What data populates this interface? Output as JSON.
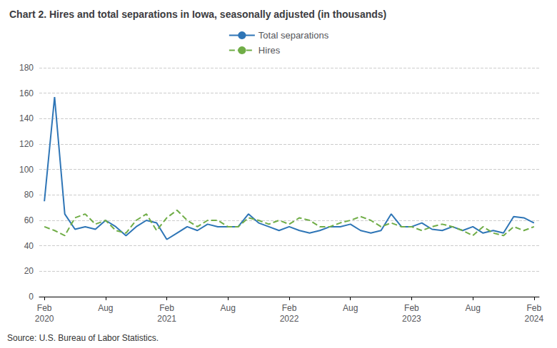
{
  "chart_data": {
    "type": "line",
    "title": "Chart 2. Hires and total separations in Iowa, seasonally adjusted (in thousands)",
    "annotations": [
      "Source: U.S. Bureau of Labor Statistics."
    ],
    "categories": [
      "Feb 2020",
      null,
      null,
      null,
      null,
      null,
      "Aug",
      null,
      null,
      null,
      null,
      null,
      "Feb 2021",
      null,
      null,
      null,
      null,
      null,
      "Aug",
      null,
      null,
      null,
      null,
      null,
      "Feb 2022",
      null,
      null,
      null,
      null,
      null,
      "Aug",
      null,
      null,
      null,
      null,
      null,
      "Feb 2023",
      null,
      null,
      null,
      null,
      null,
      "Aug",
      null,
      null,
      null,
      null,
      null,
      "Feb 2024"
    ],
    "series": [
      {
        "name": "Total separations",
        "color": "#2E75B6",
        "line_style": "solid",
        "marker": "none",
        "values": [
          75,
          157,
          65,
          53,
          55,
          53,
          60,
          55,
          48,
          55,
          60,
          58,
          45,
          50,
          55,
          52,
          57,
          55,
          55,
          55,
          65,
          58,
          55,
          52,
          55,
          52,
          50,
          52,
          55,
          55,
          57,
          52,
          50,
          52,
          65,
          55,
          55,
          58,
          53,
          52,
          55,
          52,
          55,
          50,
          52,
          50,
          63,
          62,
          58
        ]
      },
      {
        "name": "Hires",
        "color": "#70AD47",
        "line_style": "dashed",
        "marker": "none",
        "values": [
          55,
          52,
          48,
          62,
          65,
          57,
          60,
          52,
          50,
          60,
          65,
          52,
          62,
          68,
          60,
          55,
          60,
          60,
          55,
          55,
          62,
          60,
          57,
          60,
          57,
          62,
          60,
          55,
          55,
          58,
          60,
          63,
          60,
          55,
          58,
          55,
          55,
          52,
          55,
          57,
          55,
          52,
          48,
          55,
          50,
          48,
          55,
          52,
          55
        ]
      }
    ],
    "ylim": [
      0,
      180
    ],
    "yticks": [
      0,
      20,
      40,
      60,
      80,
      100,
      120,
      140,
      160,
      180
    ],
    "grid": true,
    "legend": "top"
  }
}
